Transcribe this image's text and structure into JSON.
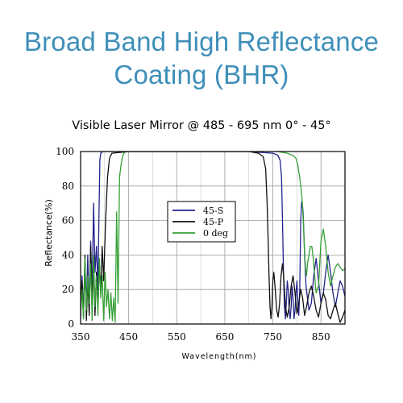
{
  "header": {
    "title_line1": "Broad Band High Reflectance",
    "title_line2": "Coating (BHR)"
  },
  "chart_data": {
    "type": "line",
    "title": "Visible Laser Mirror  @ 485 - 695 nm 0°  -  45°",
    "xlabel": "Wavelength(nm)",
    "ylabel": "Reflectance(%)",
    "xlim": [
      350,
      900
    ],
    "ylim": [
      0,
      100
    ],
    "xticks": [
      350,
      450,
      550,
      650,
      750,
      850
    ],
    "yticks": [
      0,
      20,
      40,
      60,
      80,
      100
    ],
    "grid": true,
    "legend_position": "center-left",
    "series": [
      {
        "name": "45-S",
        "color": "#23238c",
        "x": [
          350,
          353,
          356,
          359,
          362,
          365,
          368,
          371,
          374,
          377,
          380,
          383,
          386,
          388,
          390,
          392,
          396,
          400,
          410,
          450,
          500,
          600,
          700,
          750,
          760,
          765,
          768,
          770,
          772,
          774,
          776,
          778,
          780,
          782,
          784,
          786,
          788,
          790,
          792,
          794,
          796,
          798,
          800,
          802,
          804,
          806,
          808,
          810,
          813,
          816,
          819,
          822,
          825,
          830,
          835,
          840,
          845,
          850,
          855,
          860,
          865,
          870,
          875,
          880,
          885,
          890,
          895,
          900
        ],
        "y": [
          3,
          28,
          5,
          35,
          10,
          40,
          8,
          48,
          18,
          70,
          30,
          45,
          20,
          60,
          95,
          99,
          100,
          100,
          100,
          100,
          100,
          100,
          100,
          99,
          98,
          95,
          85,
          60,
          30,
          10,
          3,
          12,
          25,
          20,
          8,
          3,
          10,
          22,
          15,
          3,
          8,
          18,
          25,
          12,
          5,
          20,
          60,
          71,
          65,
          40,
          22,
          15,
          8,
          12,
          28,
          38,
          25,
          12,
          18,
          30,
          40,
          30,
          18,
          10,
          18,
          25,
          22,
          16
        ]
      },
      {
        "name": "45-P",
        "color": "#111111",
        "x": [
          350,
          353,
          356,
          359,
          362,
          365,
          368,
          371,
          374,
          377,
          380,
          383,
          386,
          389,
          392,
          395,
          398,
          402,
          406,
          410,
          415,
          450,
          500,
          600,
          700,
          720,
          730,
          735,
          738,
          740,
          742,
          744,
          746,
          748,
          750,
          752,
          755,
          758,
          761,
          764,
          767,
          770,
          773,
          776,
          780,
          784,
          788,
          792,
          796,
          800,
          804,
          808,
          812,
          816,
          820,
          825,
          830,
          835,
          840,
          845,
          850,
          855,
          860,
          865,
          870,
          875,
          880,
          885,
          890,
          895,
          900
        ],
        "y": [
          8,
          25,
          4,
          40,
          2,
          25,
          5,
          45,
          12,
          35,
          5,
          30,
          10,
          35,
          20,
          45,
          25,
          60,
          85,
          96,
          99,
          100,
          100,
          100,
          100,
          99,
          97,
          90,
          70,
          50,
          28,
          10,
          3,
          10,
          25,
          30,
          20,
          8,
          4,
          12,
          28,
          35,
          25,
          10,
          4,
          10,
          22,
          28,
          18,
          6,
          12,
          20,
          15,
          5,
          10,
          18,
          22,
          16,
          8,
          4,
          12,
          18,
          14,
          5,
          3,
          8,
          12,
          6,
          1,
          4,
          8
        ]
      },
      {
        "name": "0 deg",
        "color": "#35a035",
        "x": [
          350,
          353,
          356,
          359,
          362,
          365,
          368,
          371,
          374,
          377,
          380,
          383,
          386,
          389,
          392,
          395,
          398,
          401,
          404,
          407,
          410,
          413,
          416,
          419,
          422,
          425,
          428,
          431,
          434,
          437,
          440,
          445,
          450,
          500,
          600,
          700,
          760,
          780,
          790,
          795,
          798,
          800,
          802,
          804,
          806,
          808,
          810,
          812,
          814,
          816,
          818,
          820,
          822,
          825,
          828,
          831,
          834,
          837,
          840,
          845,
          850,
          855,
          860,
          865,
          870,
          875,
          880,
          885,
          890,
          895,
          900
        ],
        "y": [
          5,
          20,
          3,
          38,
          8,
          28,
          12,
          35,
          2,
          40,
          10,
          28,
          5,
          38,
          15,
          28,
          2,
          30,
          10,
          20,
          3,
          18,
          2,
          15,
          1,
          65,
          12,
          85,
          92,
          97,
          99,
          100,
          100,
          100,
          100,
          100,
          100,
          99,
          98,
          97,
          96,
          94,
          92,
          88,
          85,
          80,
          75,
          68,
          55,
          42,
          32,
          28,
          35,
          40,
          45,
          45,
          38,
          28,
          18,
          22,
          48,
          55,
          45,
          30,
          22,
          28,
          33,
          35,
          33,
          31,
          32
        ]
      }
    ]
  }
}
